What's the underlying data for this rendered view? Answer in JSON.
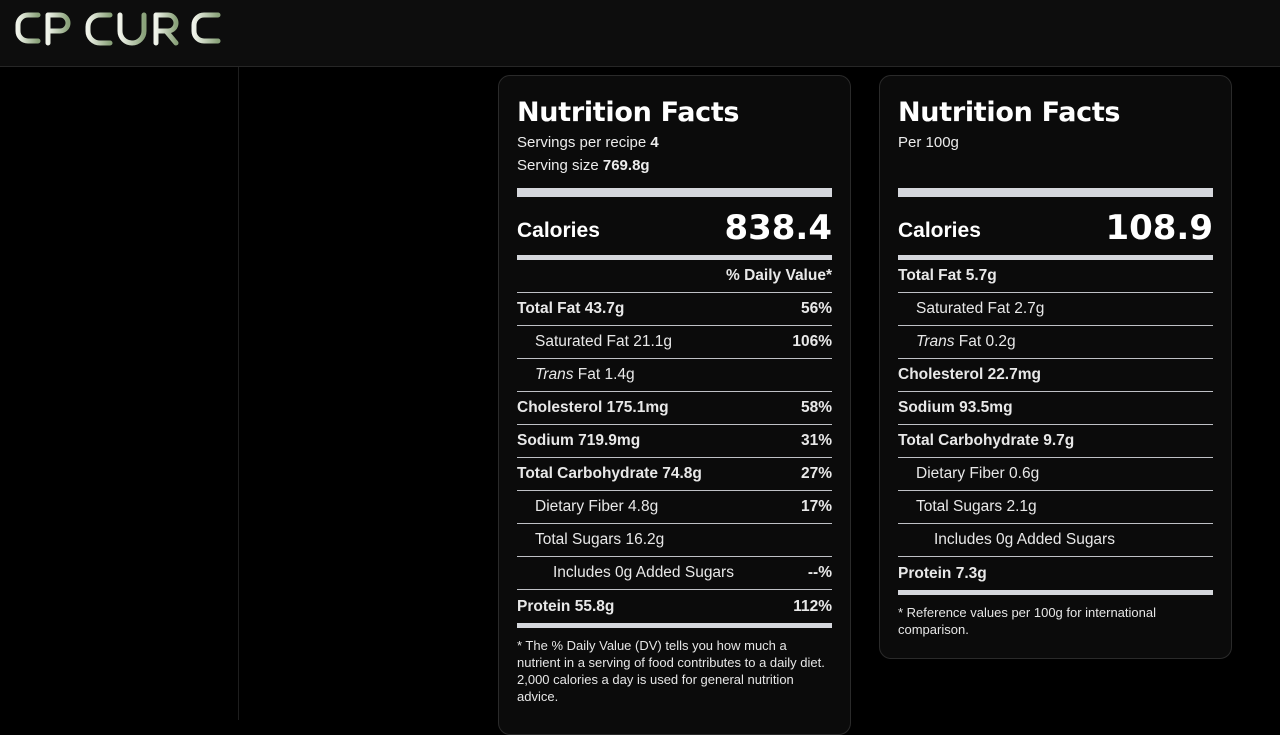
{
  "app": {
    "logo_text": "EPICURE"
  },
  "per_serving": {
    "title": "Nutrition Facts",
    "servings_label": "Servings per recipe",
    "servings_value": "4",
    "serving_size_label": "Serving size",
    "serving_size_value": "769.8g",
    "calories_label": "Calories",
    "calories_value": "838.4",
    "dv_header": "% Daily Value*",
    "rows": [
      {
        "label": "Total Fat 43.7g",
        "pct": "56%"
      },
      {
        "label": "Saturated Fat 21.1g",
        "pct": "106%"
      },
      {
        "label_em": "Trans",
        "label_rest": " Fat 1.4g",
        "pct": ""
      },
      {
        "label": "Cholesterol 175.1mg",
        "pct": "58%"
      },
      {
        "label": "Sodium 719.9mg",
        "pct": "31%"
      },
      {
        "label": "Total Carbohydrate 74.8g",
        "pct": "27%"
      },
      {
        "label": "Dietary Fiber 4.8g",
        "pct": "17%"
      },
      {
        "label": "Total Sugars 16.2g",
        "pct": ""
      },
      {
        "label": "Includes 0g Added Sugars",
        "pct": "--%"
      },
      {
        "label": "Protein 55.8g",
        "pct": "112%"
      }
    ],
    "footnote": "* The % Daily Value (DV) tells you how much a nutrient in a serving of food contributes to a daily diet. 2,000 calories a day is used for general nutrition advice."
  },
  "per_100g": {
    "title": "Nutrition Facts",
    "subtitle": "Per 100g",
    "calories_label": "Calories",
    "calories_value": "108.9",
    "rows": [
      {
        "label": "Total Fat 5.7g"
      },
      {
        "label": "Saturated Fat 2.7g"
      },
      {
        "label_em": "Trans",
        "label_rest": " Fat 0.2g"
      },
      {
        "label": "Cholesterol 22.7mg"
      },
      {
        "label": "Sodium 93.5mg"
      },
      {
        "label": "Total Carbohydrate 9.7g"
      },
      {
        "label": "Dietary Fiber 0.6g"
      },
      {
        "label": "Total Sugars 2.1g"
      },
      {
        "label": "Includes 0g Added Sugars"
      },
      {
        "label": "Protein 7.3g"
      }
    ],
    "footnote": "* Reference values per 100g for international comparison."
  }
}
